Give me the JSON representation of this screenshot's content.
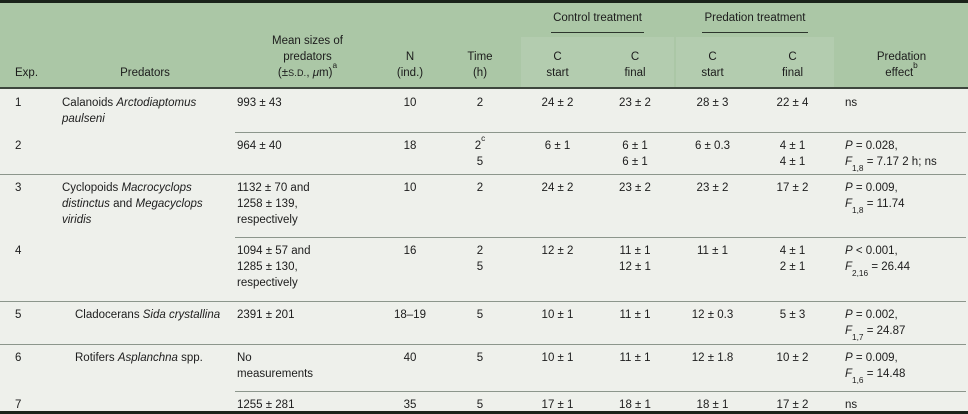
{
  "colors": {
    "header_green": "#abc7a6",
    "body_background": "#eef0eb",
    "frame_border": "#1a231a",
    "separator_line": "#8c968c",
    "text": "#1c1c1c"
  },
  "table": {
    "group_headers": {
      "control": "Control treatment",
      "predation": "Predation treatment"
    },
    "columns": {
      "exp": "Exp.",
      "predators": "Predators",
      "mean_sizes_html": "Mean sizes of<br>predators<br>(±<span class=\"sc\">s.d.</span>, <i>μ</i>m)<sup>a</sup>",
      "n_html": "N<br>(ind.)",
      "time_html": "Time<br>(h)",
      "c_start_html": "C<br>start",
      "c_final_html": "C<br>final",
      "effect_html": "Predation<br>effect<sup>b</sup>"
    },
    "rows": [
      {
        "exp": "1",
        "predators_html": "Calanoids <i>Arctodiaptomus paulseni</i>",
        "mean_html": "993 ± 43",
        "n_html": "10",
        "time_html": "2",
        "ctrl_start_html": "24 ± 2",
        "ctrl_final_html": "23 ± 2",
        "pred_start_html": "28 ± 3",
        "pred_final_html": "22 ± 4",
        "effect_html": "ns"
      },
      {
        "exp": "2",
        "predators_html": "",
        "mean_html": "964 ± 40",
        "n_html": "18",
        "time_html": "2<sup>c</sup><br>5",
        "ctrl_start_html": "6 ± 1",
        "ctrl_final_html": "6 ± 1<br>6 ± 1",
        "pred_start_html": "6 ± 0.3",
        "pred_final_html": "4 ± 1<br>4 ± 1",
        "effect_html": "<i>P</i> = 0.028,<br><i>F</i><sub>1,8</sub> = 7.17 2 h; ns"
      },
      {
        "exp": "3",
        "predators_html": "Cyclopoids <i>Macrocyclops distinctus</i> and <i>Megacyclops viridis</i>",
        "mean_html": "1132 ± 70 and<br>1258 ± 139,<br>respectively",
        "n_html": "10",
        "time_html": "2",
        "ctrl_start_html": "24 ± 2",
        "ctrl_final_html": "23 ± 2",
        "pred_start_html": "23 ± 2",
        "pred_final_html": "17 ± 2",
        "effect_html": "<i>P</i> = 0.009,<br><i>F</i><sub>1,8</sub> = 11.74"
      },
      {
        "exp": "4",
        "predators_html": "",
        "mean_html": "1094 ± 57 and<br>1285 ± 130,<br>respectively",
        "n_html": "16",
        "time_html": "2<br>5",
        "ctrl_start_html": "12 ± 2",
        "ctrl_final_html": "11 ± 1<br>12 ± 1",
        "pred_start_html": "11 ± 1",
        "pred_final_html": "4 ± 1<br>2 ± 1",
        "effect_html": "<i>P</i> &lt; 0.001,<br><i>F</i><sub>2,16</sub> = 26.44"
      },
      {
        "exp": "5",
        "predators_html": "Cladocerans <i>Sida crystallina</i>",
        "mean_html": "2391 ± 201",
        "n_html": "18–19",
        "time_html": "5",
        "ctrl_start_html": "10 ± 1",
        "ctrl_final_html": "11 ± 1",
        "pred_start_html": "12 ± 0.3",
        "pred_final_html": "5 ± 3",
        "effect_html": "<i>P</i> = 0.002,<br><i>F</i><sub>1,7</sub> = 24.87"
      },
      {
        "exp": "6",
        "predators_html": "Rotifers <i>Asplanchna</i> spp.",
        "mean_html": "No<br>measurements",
        "n_html": "40",
        "time_html": "5",
        "ctrl_start_html": "10 ± 1",
        "ctrl_final_html": "11 ± 1",
        "pred_start_html": "12 ± 1.8",
        "pred_final_html": "10 ± 2",
        "effect_html": "<i>P</i> = 0.009,<br><i>F</i><sub>1,6</sub> = 14.48"
      },
      {
        "exp": "7",
        "predators_html": "",
        "mean_html": "1255 ± 281",
        "n_html": "35",
        "time_html": "5",
        "ctrl_start_html": "17 ± 1",
        "ctrl_final_html": "18 ± 1",
        "pred_start_html": "18 ± 1",
        "pred_final_html": "17 ± 2",
        "effect_html": "ns"
      }
    ]
  }
}
